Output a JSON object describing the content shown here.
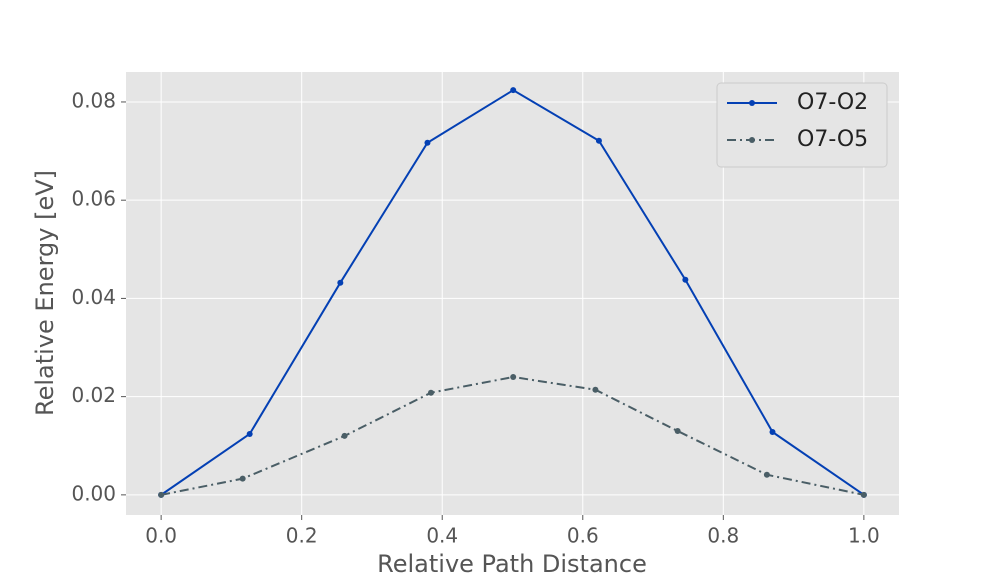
{
  "chart_data": {
    "type": "line",
    "x_label": "Relative Path Distance",
    "y_label": "Relative Energy [eV]",
    "xlim": [
      -0.05,
      1.05
    ],
    "ylim": [
      -0.0041,
      0.0861
    ],
    "xticks": [
      {
        "value": 0,
        "label": "0.0"
      },
      {
        "value": 0.2,
        "label": "0.2"
      },
      {
        "value": 0.4,
        "label": "0.4"
      },
      {
        "value": 0.6,
        "label": "0.6"
      },
      {
        "value": 0.8,
        "label": "0.8"
      },
      {
        "value": 1,
        "label": "1.0"
      }
    ],
    "yticks": [
      {
        "value": 0,
        "label": "0.00"
      },
      {
        "value": 0.02,
        "label": "0.02"
      },
      {
        "value": 0.04,
        "label": "0.04"
      },
      {
        "value": 0.06,
        "label": "0.06"
      },
      {
        "value": 0.08,
        "label": "0.08"
      }
    ],
    "grid": true,
    "legend_position": "upper-right",
    "series": [
      {
        "name": "O7-O2",
        "color": "#0440b4",
        "linestyle": "solid",
        "x": [
          0,
          0.126,
          0.255,
          0.379,
          0.501,
          0.623,
          0.746,
          0.87,
          1.0
        ],
        "values": [
          0,
          0.0124,
          0.0432,
          0.0717,
          0.0824,
          0.0721,
          0.0438,
          0.0128,
          0
        ]
      },
      {
        "name": "O7-O5",
        "color": "#4a5e66",
        "linestyle": "dashdot",
        "x": [
          0,
          0.116,
          0.261,
          0.384,
          0.501,
          0.618,
          0.735,
          0.862,
          1.0
        ],
        "values": [
          0,
          0.0033,
          0.012,
          0.0208,
          0.024,
          0.0214,
          0.013,
          0.0041,
          0
        ]
      }
    ]
  }
}
